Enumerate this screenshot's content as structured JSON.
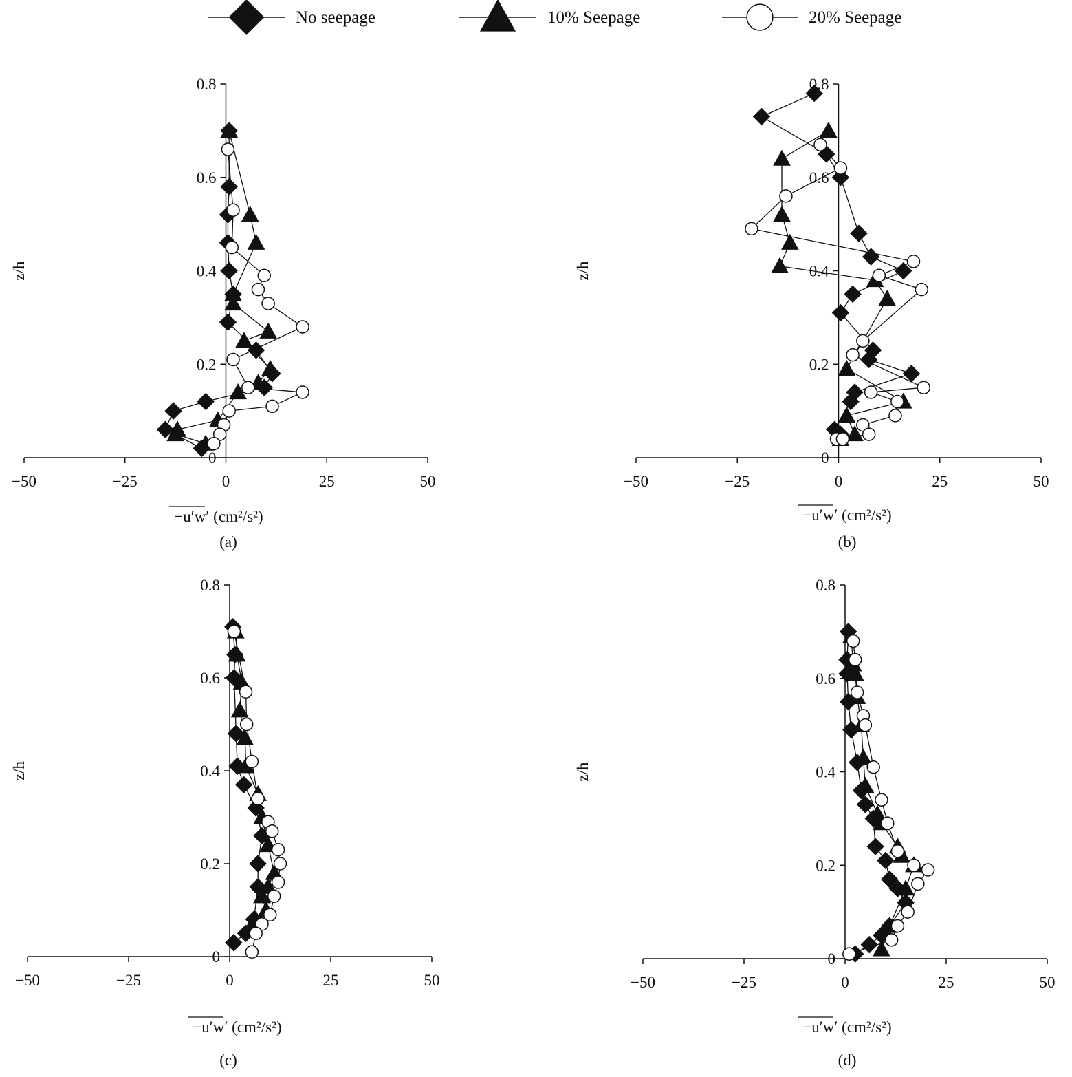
{
  "legend": [
    {
      "series": "no_seepage",
      "label": "No seepage",
      "marker": "diamond"
    },
    {
      "series": "s10",
      "label": "10% Seepage",
      "marker": "triangle"
    },
    {
      "series": "s20",
      "label": "20% Seepage",
      "marker": "circle"
    }
  ],
  "chart_data": [
    {
      "type": "line",
      "caption": "(a)",
      "xlabel": "−u′w′ (cm²/s²)",
      "ylabel": "z/h",
      "xlim": [
        -50,
        50
      ],
      "ylim": [
        0,
        0.8
      ],
      "xticks": [
        -50,
        -25,
        0,
        25,
        50
      ],
      "yticks": [
        0,
        0.2,
        0.4,
        0.6,
        0.8
      ],
      "xtick_labels": [
        "−50",
        "−25",
        "0",
        "25",
        "50"
      ],
      "ytick_labels": [
        "0",
        "0.2",
        "0.4",
        "0.6",
        "0.8"
      ],
      "series": [
        {
          "name": "No seepage",
          "marker": "diamond",
          "x": [
            0.8,
            0.8,
            0.5,
            0.5,
            0.8,
            1.8,
            0.5,
            7.5,
            11.5,
            9.5,
            -5,
            -13,
            -15,
            -6
          ],
          "y": [
            0.7,
            0.58,
            0.52,
            0.46,
            0.4,
            0.35,
            0.29,
            0.23,
            0.18,
            0.15,
            0.12,
            0.1,
            0.06,
            0.02
          ]
        },
        {
          "name": "10% Seepage",
          "marker": "triangle",
          "x": [
            0.8,
            6,
            7.5,
            1.8,
            1.8,
            10.5,
            4.5,
            11,
            8,
            3,
            -2,
            -12,
            -12.5,
            -5
          ],
          "y": [
            0.7,
            0.52,
            0.46,
            0.35,
            0.33,
            0.27,
            0.25,
            0.19,
            0.16,
            0.14,
            0.08,
            0.06,
            0.05,
            0.03
          ]
        },
        {
          "name": "20% Seepage",
          "marker": "circle",
          "x": [
            0.5,
            1.8,
            1.5,
            9.5,
            8,
            10.5,
            19,
            1.8,
            5.5,
            19,
            11.5,
            0.8,
            -0.5,
            -1.5,
            -3
          ],
          "y": [
            0.66,
            0.53,
            0.45,
            0.39,
            0.36,
            0.33,
            0.28,
            0.21,
            0.15,
            0.14,
            0.11,
            0.1,
            0.07,
            0.05,
            0.03
          ]
        }
      ]
    },
    {
      "type": "line",
      "caption": "(b)",
      "xlabel": "−u′w′ (cm²/s²)",
      "ylabel": "z/h",
      "xlim": [
        -50,
        50
      ],
      "ylim": [
        0,
        0.8
      ],
      "xticks": [
        -50,
        -25,
        0,
        25,
        50
      ],
      "yticks": [
        0,
        0.2,
        0.4,
        0.6,
        0.8
      ],
      "xtick_labels": [
        "−50",
        "−25",
        "0",
        "25",
        "50"
      ],
      "ytick_labels": [
        "0",
        "0.2",
        "0.4",
        "0.6",
        "0.8"
      ],
      "series": [
        {
          "name": "No seepage",
          "marker": "diamond",
          "x": [
            -6,
            -19,
            -3,
            0.5,
            5,
            8,
            16,
            3.5,
            0.5,
            8.5,
            7.5,
            18,
            4,
            3,
            -1,
            0.5
          ],
          "y": [
            0.78,
            0.73,
            0.65,
            0.6,
            0.48,
            0.43,
            0.4,
            0.35,
            0.31,
            0.23,
            0.21,
            0.18,
            0.14,
            0.12,
            0.06,
            0.05
          ]
        },
        {
          "name": "10% Seepage",
          "marker": "triangle",
          "x": [
            -2.5,
            -14,
            -14,
            -12,
            -14.5,
            9,
            12,
            2,
            16,
            2,
            4,
            0.5
          ],
          "y": [
            0.7,
            0.64,
            0.52,
            0.46,
            0.41,
            0.38,
            0.34,
            0.19,
            0.12,
            0.09,
            0.05,
            0.04
          ]
        },
        {
          "name": "20% Seepage",
          "marker": "circle",
          "x": [
            -4.5,
            0.5,
            -13,
            -21.5,
            18.5,
            10,
            20.5,
            6,
            3.5,
            21,
            8,
            14.5,
            14,
            6,
            7.5,
            -0.5,
            1
          ],
          "y": [
            0.67,
            0.62,
            0.56,
            0.49,
            0.42,
            0.39,
            0.36,
            0.25,
            0.22,
            0.15,
            0.14,
            0.12,
            0.09,
            0.07,
            0.05,
            0.04,
            0.04
          ]
        }
      ]
    },
    {
      "type": "line",
      "caption": "(c)",
      "xlabel": "−u′w′ (cm²/s²)",
      "ylabel": "z/h",
      "xlim": [
        -50,
        50
      ],
      "ylim": [
        0,
        0.8
      ],
      "xticks": [
        -50,
        -25,
        0,
        25,
        50
      ],
      "yticks": [
        0,
        0.2,
        0.4,
        0.6,
        0.8
      ],
      "xtick_labels": [
        "−50",
        "−25",
        "0",
        "25",
        "50"
      ],
      "ytick_labels": [
        "0",
        "0.2",
        "0.4",
        "0.6",
        "0.8"
      ],
      "series": [
        {
          "name": "No seepage",
          "marker": "diamond",
          "x": [
            0.8,
            1.3,
            1.1,
            1.6,
            1.9,
            3.5,
            6.5,
            8,
            7,
            7,
            6,
            4,
            1
          ],
          "y": [
            0.71,
            0.65,
            0.6,
            0.48,
            0.41,
            0.37,
            0.32,
            0.26,
            0.2,
            0.15,
            0.08,
            0.05,
            0.03
          ]
        },
        {
          "name": "10% Seepage",
          "marker": "triangle",
          "x": [
            1.5,
            1.8,
            3,
            2.5,
            3.8,
            4,
            7,
            8,
            9.5,
            11,
            9.5,
            8,
            9,
            6.5,
            5
          ],
          "y": [
            0.7,
            0.65,
            0.59,
            0.53,
            0.47,
            0.41,
            0.35,
            0.3,
            0.24,
            0.18,
            0.15,
            0.13,
            0.1,
            0.08,
            0.06
          ]
        },
        {
          "name": "20% Seepage",
          "marker": "circle",
          "x": [
            1.1,
            4,
            4.2,
            5.5,
            7,
            9.5,
            10.5,
            12,
            12.5,
            12,
            11,
            10,
            8,
            6.5,
            5.5
          ],
          "y": [
            0.7,
            0.57,
            0.5,
            0.42,
            0.34,
            0.29,
            0.27,
            0.23,
            0.2,
            0.16,
            0.13,
            0.09,
            0.07,
            0.05,
            0.01
          ]
        }
      ]
    },
    {
      "type": "line",
      "caption": "(d)",
      "xlabel": "−u′w′ (cm²/s²)",
      "ylabel": "z/h",
      "xlim": [
        -50,
        50
      ],
      "ylim": [
        0,
        0.8
      ],
      "xticks": [
        -50,
        -25,
        0,
        25,
        50
      ],
      "yticks": [
        0,
        0.2,
        0.4,
        0.6,
        0.8
      ],
      "xtick_labels": [
        "−50",
        "−25",
        "0",
        "25",
        "50"
      ],
      "ytick_labels": [
        "0",
        "0.2",
        "0.4",
        "0.6",
        "0.8"
      ],
      "series": [
        {
          "name": "No seepage",
          "marker": "diamond",
          "x": [
            0.8,
            0.5,
            0.5,
            0.8,
            1.5,
            3,
            4,
            5,
            7,
            7.5,
            10,
            11,
            13,
            15,
            11,
            9,
            6,
            2.5
          ],
          "y": [
            0.7,
            0.64,
            0.61,
            0.55,
            0.49,
            0.42,
            0.36,
            0.33,
            0.3,
            0.24,
            0.21,
            0.17,
            0.15,
            0.12,
            0.07,
            0.05,
            0.03,
            0.01
          ]
        },
        {
          "name": "10% Seepage",
          "marker": "triangle",
          "x": [
            1.5,
            2,
            2.5,
            3,
            4,
            4.5,
            5,
            8,
            9,
            13,
            14,
            17,
            15,
            11,
            9
          ],
          "y": [
            0.69,
            0.63,
            0.61,
            0.56,
            0.5,
            0.43,
            0.37,
            0.31,
            0.29,
            0.24,
            0.22,
            0.2,
            0.15,
            0.07,
            0.02
          ]
        },
        {
          "name": "20% Seepage",
          "marker": "circle",
          "x": [
            2,
            2.5,
            3,
            4.5,
            5,
            7,
            9,
            10.5,
            13,
            17,
            20.5,
            18,
            15.5,
            13,
            11.5,
            1
          ],
          "y": [
            0.68,
            0.64,
            0.57,
            0.52,
            0.5,
            0.41,
            0.34,
            0.29,
            0.23,
            0.2,
            0.19,
            0.16,
            0.1,
            0.07,
            0.04,
            0.01
          ]
        }
      ]
    }
  ]
}
